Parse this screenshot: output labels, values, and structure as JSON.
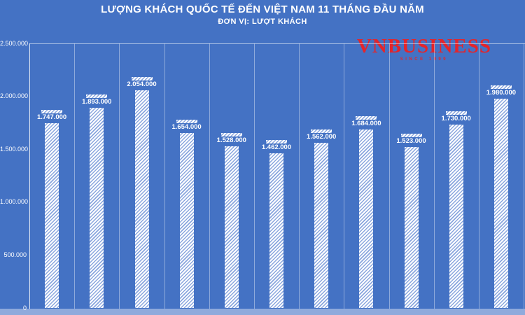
{
  "header": {
    "title": "LƯỢNG KHÁCH QUỐC TẾ ĐẾN VIỆT NAM 11 THÁNG ĐẦU NĂM",
    "subtitle": "ĐƠN VỊ: LƯỢT KHÁCH"
  },
  "logo": {
    "text": "VNBUSINESS",
    "tagline": "SINCE 1999"
  },
  "chart_data": {
    "type": "bar",
    "title": "LƯỢNG KHÁCH QUỐC TẾ ĐẾN VIỆT NAM 11 THÁNG ĐẦU NĂM",
    "ylabel": "LƯỢT KHÁCH",
    "xlabel": "",
    "values": [
      1747000,
      1893000,
      2054000,
      1654000,
      1528000,
      1462000,
      1562000,
      1684000,
      1523000,
      1730000,
      1980000
    ],
    "value_labels": [
      "1.747.000",
      "1.893.000",
      "2.054.000",
      "1.654.000",
      "1.528.000",
      "1.462.000",
      "1.562.000",
      "1.684.000",
      "1.523.000",
      "1.730.000",
      "1.980.000"
    ],
    "y_ticks": [
      "2.500.000",
      "2.000.000",
      "1.500.000",
      "1.000.000",
      "500.000",
      "0"
    ],
    "ylim": [
      0,
      2500000
    ],
    "grid": "vertical column separators, top horizontal gridline",
    "legend": "none",
    "bar_style": "white diagonal hatch pattern with small hatched swatch above each data label"
  },
  "colors": {
    "background": "#4472C4",
    "text": "#ffffff",
    "logo_red": "#E4252B",
    "hatch_blue": "#8AA6DE",
    "bottom_strip": "#8FAADC",
    "gridline": "rgba(255,255,255,0.4)"
  }
}
